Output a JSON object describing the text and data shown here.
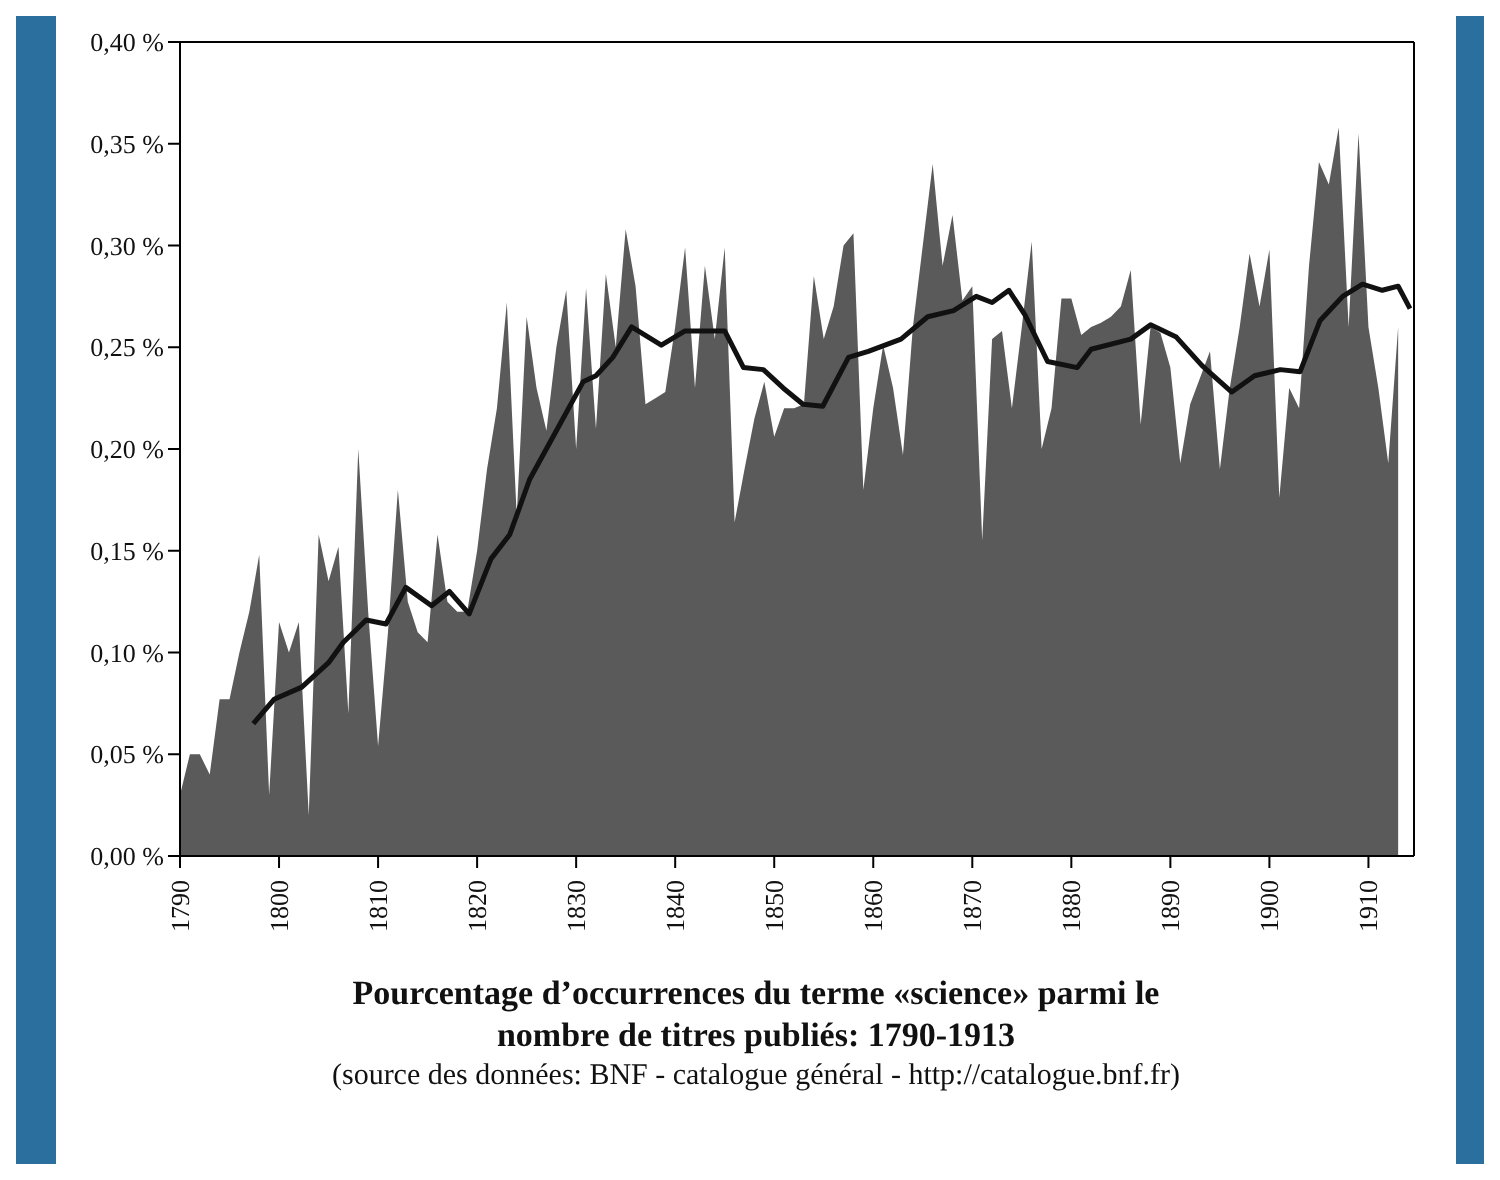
{
  "chart_data": {
    "type": "area",
    "title": "Pourcentage d’occurrences du terme «science» parmi le nombre de titres publiés: 1790-1913",
    "annotations": [
      "(source des données: BNF - catalogue général - http://catalogue.bnf.fr)"
    ],
    "x": [
      1790,
      1791,
      1792,
      1793,
      1794,
      1795,
      1796,
      1797,
      1798,
      1799,
      1800,
      1801,
      1802,
      1803,
      1804,
      1805,
      1806,
      1807,
      1808,
      1809,
      1810,
      1811,
      1812,
      1813,
      1814,
      1815,
      1816,
      1817,
      1818,
      1819,
      1820,
      1821,
      1822,
      1823,
      1824,
      1825,
      1826,
      1827,
      1828,
      1829,
      1830,
      1831,
      1832,
      1833,
      1834,
      1835,
      1836,
      1837,
      1838,
      1839,
      1840,
      1841,
      1842,
      1843,
      1844,
      1845,
      1846,
      1847,
      1848,
      1849,
      1850,
      1851,
      1852,
      1853,
      1854,
      1855,
      1856,
      1857,
      1858,
      1859,
      1860,
      1861,
      1862,
      1863,
      1864,
      1865,
      1866,
      1867,
      1868,
      1869,
      1870,
      1871,
      1872,
      1873,
      1874,
      1875,
      1876,
      1877,
      1878,
      1879,
      1880,
      1881,
      1882,
      1883,
      1884,
      1885,
      1886,
      1887,
      1888,
      1889,
      1890,
      1891,
      1892,
      1893,
      1894,
      1895,
      1896,
      1897,
      1898,
      1899,
      1900,
      1901,
      1902,
      1903,
      1904,
      1905,
      1906,
      1907,
      1908,
      1909,
      1910,
      1911,
      1912,
      1913
    ],
    "series": [
      {
        "color": "#5a5a5a",
        "values": [
          0.03,
          0.05,
          0.05,
          0.04,
          0.077,
          0.077,
          0.1,
          0.12,
          0.148,
          0.03,
          0.115,
          0.1,
          0.115,
          0.02,
          0.158,
          0.135,
          0.152,
          0.07,
          0.2,
          0.12,
          0.054,
          0.11,
          0.18,
          0.125,
          0.11,
          0.105,
          0.158,
          0.125,
          0.12,
          0.12,
          0.15,
          0.19,
          0.22,
          0.272,
          0.167,
          0.265,
          0.23,
          0.209,
          0.25,
          0.278,
          0.2,
          0.279,
          0.21,
          0.286,
          0.25,
          0.308,
          0.28,
          0.222,
          0.225,
          0.228,
          0.26,
          0.299,
          0.23,
          0.29,
          0.254,
          0.299,
          0.164,
          0.19,
          0.215,
          0.233,
          0.206,
          0.22,
          0.22,
          0.222,
          0.285,
          0.254,
          0.27,
          0.3,
          0.306,
          0.18,
          0.22,
          0.251,
          0.23,
          0.197,
          0.26,
          0.3,
          0.34,
          0.29,
          0.315,
          0.273,
          0.28,
          0.155,
          0.254,
          0.258,
          0.22,
          0.26,
          0.302,
          0.2,
          0.22,
          0.274,
          0.274,
          0.256,
          0.26,
          0.262,
          0.265,
          0.27,
          0.288,
          0.212,
          0.26,
          0.257,
          0.24,
          0.193,
          0.222,
          0.235,
          0.248,
          0.19,
          0.23,
          0.26,
          0.296,
          0.27,
          0.298,
          0.176,
          0.23,
          0.22,
          0.29,
          0.341,
          0.33,
          0.358,
          0.26,
          0.355,
          0.26,
          0.23,
          0.193,
          0.26
        ]
      },
      {
        "type": "line",
        "color": "#111111",
        "x": [
          1797.4,
          1799.5,
          1802.3,
          1805,
          1806.5,
          1808.8,
          1810.8,
          1812.8,
          1815.4,
          1817.2,
          1819.2,
          1821.4,
          1823.3,
          1825.3,
          1828,
          1830.7,
          1832,
          1833.7,
          1835.6,
          1838.6,
          1841,
          1845,
          1846.9,
          1848.9,
          1850.9,
          1852.9,
          1854.9,
          1857.5,
          1859.5,
          1862.8,
          1865.5,
          1868.1,
          1870.4,
          1872,
          1873.7,
          1875.3,
          1877.6,
          1880.6,
          1882,
          1886,
          1888,
          1890.6,
          1893.2,
          1896.2,
          1898.5,
          1901.1,
          1903.1,
          1905.1,
          1907.4,
          1909.4,
          1911.4,
          1913,
          1914.2
        ],
        "values": [
          0.065,
          0.077,
          0.083,
          0.095,
          0.105,
          0.116,
          0.114,
          0.132,
          0.123,
          0.13,
          0.119,
          0.146,
          0.158,
          0.185,
          0.209,
          0.233,
          0.236,
          0.245,
          0.26,
          0.251,
          0.258,
          0.258,
          0.24,
          0.239,
          0.23,
          0.222,
          0.221,
          0.245,
          0.248,
          0.254,
          0.265,
          0.268,
          0.275,
          0.272,
          0.278,
          0.266,
          0.243,
          0.24,
          0.249,
          0.254,
          0.261,
          0.255,
          0.241,
          0.228,
          0.236,
          0.239,
          0.238,
          0.263,
          0.275,
          0.281,
          0.278,
          0.28,
          0.269
        ]
      }
    ],
    "xlim": [
      1790,
      1914.6
    ],
    "xticks": [
      1790,
      1800,
      1810,
      1820,
      1830,
      1840,
      1850,
      1860,
      1870,
      1880,
      1890,
      1900,
      1910
    ],
    "ylim": [
      0,
      0.4
    ],
    "yticks": [
      {
        "value": 0,
        "label": "0,00 %"
      },
      {
        "value": 0.05,
        "label": "0,05 %"
      },
      {
        "value": 0.1,
        "label": "0,10 %"
      },
      {
        "value": 0.15,
        "label": "0,15 %"
      },
      {
        "value": 0.2,
        "label": "0,20 %"
      },
      {
        "value": 0.25,
        "label": "0,25 %"
      },
      {
        "value": 0.3,
        "label": "0,30 %"
      },
      {
        "value": 0.35,
        "label": "0,35 %"
      },
      {
        "value": 0.4,
        "label": "0,40 %"
      }
    ]
  }
}
